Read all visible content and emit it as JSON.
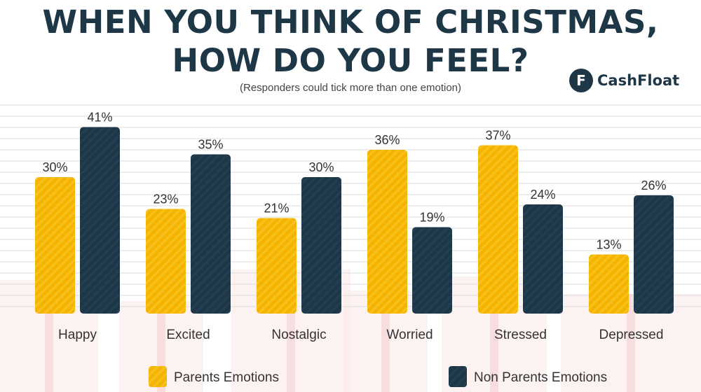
{
  "header": {
    "title_line1": "WHEN YOU THINK OF CHRISTMAS,",
    "title_line2": "HOW DO YOU FEEL?",
    "subtitle": "(Responders could tick more than one emotion)",
    "brand_name": "CashFloat",
    "brand_mark": "F"
  },
  "chart_data": {
    "type": "bar",
    "categories": [
      "Happy",
      "Excited",
      "Nostalgic",
      "Worried",
      "Stressed",
      "Depressed"
    ],
    "series": [
      {
        "name": "Parents Emotions",
        "values": [
          30,
          23,
          21,
          36,
          37,
          13
        ],
        "color": "#f5b400"
      },
      {
        "name": "Non Parents Emotions",
        "values": [
          41,
          35,
          30,
          19,
          24,
          26
        ],
        "color": "#1e3747"
      }
    ],
    "value_suffix": "%",
    "ylim": [
      0,
      45
    ],
    "legend_position": "bottom",
    "grid": true
  },
  "colors": {
    "parents": "#f5b400",
    "non_parents": "#1e3747",
    "gridline": "#dcdcdc",
    "background_decor": "#fbe8e8"
  }
}
